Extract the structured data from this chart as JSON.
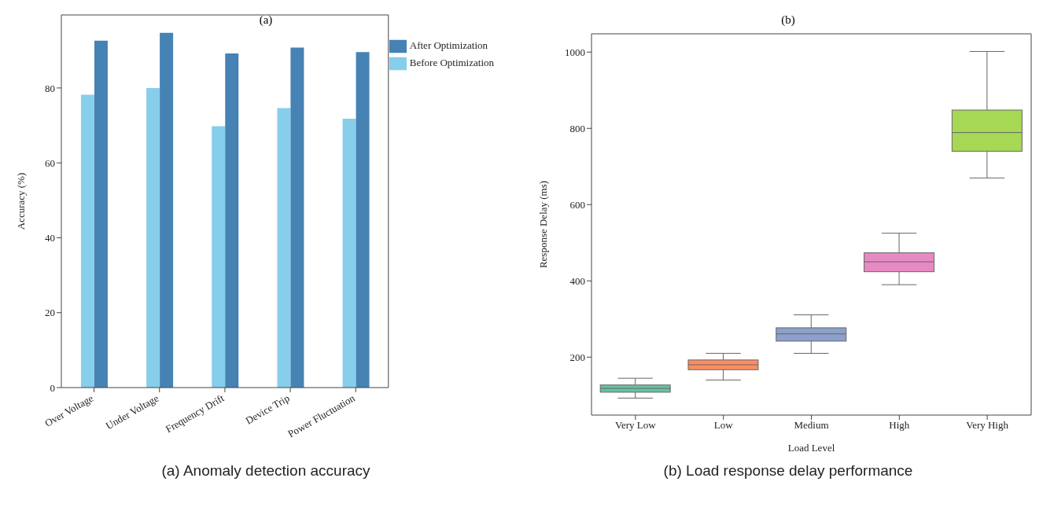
{
  "chart_data": [
    {
      "type": "bar",
      "title": "(a)",
      "ylabel": "Accuracy (%)",
      "categories": [
        "Over Voltage",
        "Under Voltage",
        "Frequency Drift",
        "Device Trip",
        "Power Fluctuation"
      ],
      "series": [
        {
          "name": "Before Optimization",
          "color": "#87ceeb",
          "values": [
            78.2,
            80,
            69.8,
            74.6,
            71.8
          ]
        },
        {
          "name": "After Optimization",
          "color": "#4682b4",
          "values": [
            92.6,
            94.7,
            89.2,
            90.8,
            89.6
          ]
        }
      ],
      "ylim": [
        0,
        99.5
      ],
      "yticks": [
        0,
        20,
        40,
        60,
        80
      ],
      "legend": "top right",
      "grid": false,
      "annotations": [
        "(a) Anomaly detection accuracy"
      ]
    },
    {
      "type": "box",
      "title": "(b)",
      "xlabel": "Load Level",
      "ylabel": "Response Delay (ms)",
      "categories": [
        "Very Low",
        "Low",
        "Medium",
        "High",
        "Very High"
      ],
      "boxes": [
        {
          "low": 92.6,
          "q1": 108,
          "median": 118,
          "q3": 127,
          "high": 144.6
        },
        {
          "low": 140,
          "q1": 167,
          "median": 180,
          "q3": 192.6,
          "high": 210
        },
        {
          "low": 210,
          "q1": 242,
          "median": 261,
          "q3": 277,
          "high": 311
        },
        {
          "low": 390,
          "q1": 424,
          "median": 450,
          "q3": 473.6,
          "high": 525
        },
        {
          "low": 670,
          "q1": 740,
          "median": 789,
          "q3": 848,
          "high": 1001.7
        }
      ],
      "colors": [
        "#66c2a5",
        "#fc8d62",
        "#8da0cb",
        "#e78ac3",
        "#a6d854"
      ],
      "ylim": [
        48,
        1048
      ],
      "yticks": [
        200,
        400,
        600,
        800,
        1000
      ],
      "grid": false,
      "annotations": [
        "(b) Load response delay performance"
      ]
    }
  ]
}
